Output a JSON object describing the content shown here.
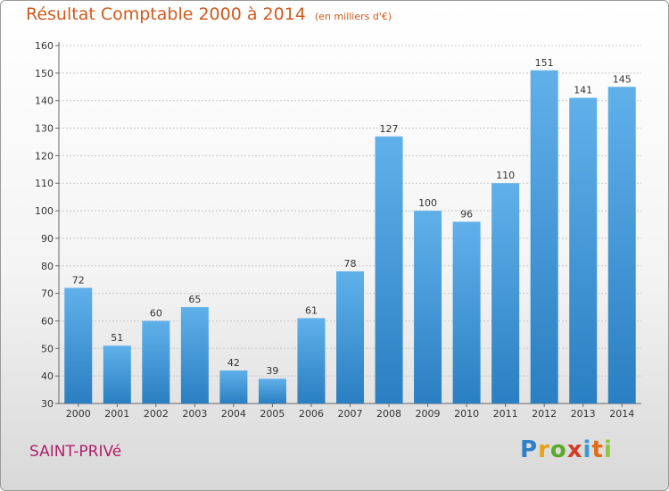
{
  "chart_data": {
    "type": "bar",
    "title": "Résultat Comptable 2000 à 2014",
    "subtitle": "(en milliers d'€)",
    "categories": [
      "2000",
      "2001",
      "2002",
      "2003",
      "2004",
      "2005",
      "2006",
      "2007",
      "2008",
      "2009",
      "2010",
      "2011",
      "2012",
      "2013",
      "2014"
    ],
    "values": [
      72,
      51,
      60,
      65,
      42,
      39,
      61,
      78,
      127,
      100,
      96,
      110,
      151,
      141,
      145
    ],
    "ylim": [
      30,
      160
    ],
    "yticks": [
      30,
      40,
      50,
      60,
      70,
      80,
      90,
      100,
      110,
      120,
      130,
      140,
      150,
      160
    ],
    "grid": true,
    "colors": {
      "bar_light": "#60b1ea",
      "bar_dark": "#2a7fc2",
      "grid": "#c8c8c8"
    }
  },
  "footer": {
    "place": "SAINT-PRIVé",
    "logo": {
      "letters": [
        "P",
        "r",
        "o",
        "x",
        "i",
        "t",
        "i"
      ],
      "colors": [
        "#2e7fc8",
        "#e8a21a",
        "#5aaa2a",
        "#d43c26",
        "#3a9ad6",
        "#e36b1a",
        "#8cc63f"
      ]
    }
  }
}
